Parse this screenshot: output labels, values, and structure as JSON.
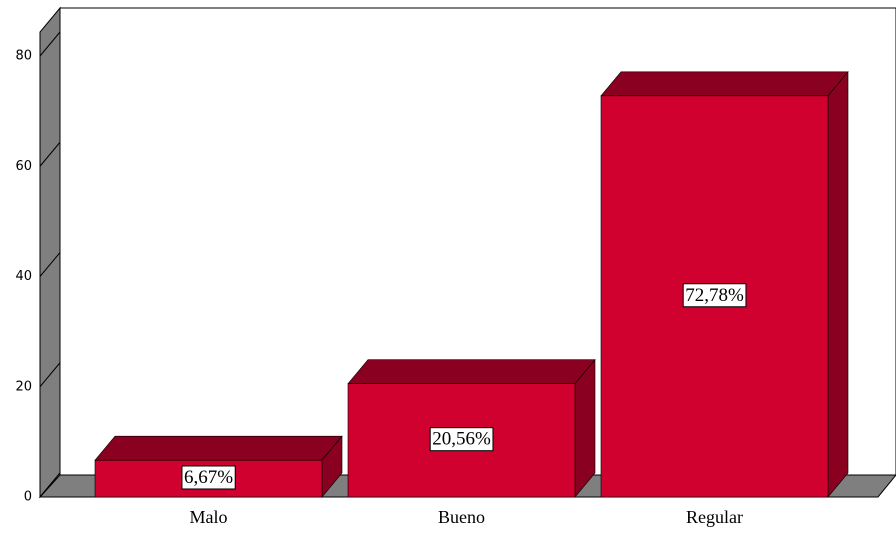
{
  "chart_data": {
    "type": "bar3d",
    "categories": [
      "Malo",
      "Bueno",
      "Regular"
    ],
    "values": [
      6.67,
      20.56,
      72.78
    ],
    "value_labels": [
      "6,67%",
      "20,56%",
      "72,78%"
    ],
    "color": "#d0002f",
    "ylim": [
      0,
      80
    ],
    "yticks": [
      0,
      20,
      40,
      60,
      80
    ]
  }
}
